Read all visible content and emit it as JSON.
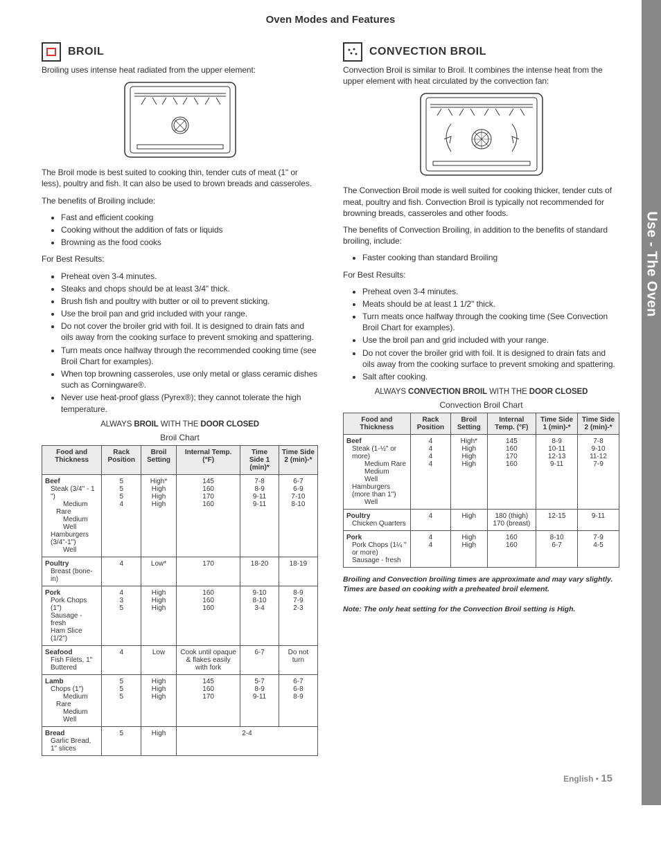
{
  "page_title": "Oven Modes and Features",
  "sidebar": "Use - The Oven",
  "footer": {
    "lang": "English",
    "page": "15"
  },
  "left": {
    "title": "BROIL",
    "intro": "Broiling uses intense heat radiated from the upper element:",
    "p1": "The Broil mode is best suited to cooking thin, tender cuts of meat (1\" or less), poultry and fish. It can also be used to brown breads and casseroles.",
    "benefits_lead": "The benefits of Broiling include:",
    "benefits": [
      "Fast and efficient cooking",
      "Cooking without the addition of fats or liquids",
      "Browning as the food cooks"
    ],
    "best_lead": "For Best Results:",
    "best": [
      "Preheat oven 3-4 minutes.",
      "Steaks and chops should be at least 3/4\" thick.",
      "Brush fish and poultry with butter or oil to prevent sticking.",
      "Use the broil pan and grid included with your range.",
      "Do not cover the broiler grid with foil.  It is designed to drain fats and oils away from the cooking surface to prevent smoking and spattering.",
      "Turn meats once halfway through the recommended cooking time (see Broil Chart for examples).",
      "When top browning casseroles, use only metal or glass ceramic dishes such as Corningware®.",
      "Never use heat-proof glass (Pyrex®); they cannot tolerate the high temperature."
    ],
    "warn_pre": "ALWAYS ",
    "warn_b1": "BROIL",
    "warn_mid": " WITH THE ",
    "warn_b2": "DOOR CLOSED",
    "chart_title": "Broil Chart",
    "headers": [
      "Food and Thickness",
      "Rack Position",
      "Broil Setting",
      "Internal Temp. (°F)",
      "Time Side 1 (min)*",
      "Time Side 2 (min)-*"
    ],
    "rows": [
      {
        "cat": "Beef",
        "subs": [
          [
            "Steak (3/4\" - 1 \")",
            "",
            "",
            "",
            "",
            ""
          ],
          [
            "  Medium Rare",
            "5",
            "High*",
            "145",
            "7-8",
            "6-7"
          ],
          [
            "  Medium",
            "5",
            "High",
            "160",
            "8-9",
            "6-9"
          ],
          [
            "  Well",
            "5",
            "High",
            "170",
            "9-11",
            "7-10"
          ],
          [
            "Hamburgers (3/4\"-1\")",
            "",
            "",
            "",
            "",
            ""
          ],
          [
            "  Well",
            "4",
            "High",
            "160",
            "9-11",
            "8-10"
          ]
        ]
      },
      {
        "cat": "Poultry",
        "subs": [
          [
            "Breast (bone-in)",
            "4",
            "Low*",
            "170",
            "18-20",
            "18-19"
          ]
        ]
      },
      {
        "cat": "Pork",
        "subs": [
          [
            "Pork Chops (1\")",
            "4",
            "High",
            "160",
            "9-10",
            "8-9"
          ],
          [
            "Sausage - fresh",
            "3",
            "High",
            "160",
            "8-10",
            "7-9"
          ],
          [
            "Ham Slice (1/2\")",
            "5",
            "High",
            "160",
            "3-4",
            "2-3"
          ]
        ]
      },
      {
        "cat": "Seafood",
        "subs": [
          [
            "Fish Filets, 1\" Buttered",
            "4",
            "Low",
            "Cook until opaque & flakes easily with fork",
            "6-7",
            "Do not turn"
          ]
        ]
      },
      {
        "cat": "Lamb",
        "subs": [
          [
            "Chops (1\")",
            "",
            "",
            "",
            "",
            ""
          ],
          [
            "  Medium Rare",
            "5",
            "High",
            "145",
            "5-7",
            "6-7"
          ],
          [
            "  Medium",
            "5",
            "High",
            "160",
            "8-9",
            "6-8"
          ],
          [
            "  Well",
            "5",
            "High",
            "170",
            "9-11",
            "8-9"
          ]
        ]
      },
      {
        "cat": "Bread",
        "subs": [
          [
            "Garlic Bread, 1\" slices",
            "5",
            "High",
            "2-4_span",
            "",
            ""
          ]
        ]
      }
    ]
  },
  "right": {
    "title": "CONVECTION BROIL",
    "intro": "Convection Broil is similar to Broil.  It combines the intense heat from the upper element with heat circulated by the convection fan:",
    "p1": "The Convection Broil mode is well suited for cooking thicker, tender cuts of meat, poultry and fish. Convection Broil is typically not recommended for browning breads, casseroles and other foods.",
    "benefits_lead": "The benefits of Convection Broiling, in addition to the benefits of standard broiling, include:",
    "benefits": [
      "Faster cooking than standard Broiling"
    ],
    "best_lead": "For Best Results:",
    "best": [
      "Preheat oven 3-4 minutes.",
      "Meats should be at least 1 1/2\" thick.",
      "Turn meats once halfway through the cooking time (See Convection Broil Chart for examples).",
      "Use the broil pan and grid included with your range.",
      "Do not cover the broiler grid with foil.  It is designed to drain fats and oils away from the cooking surface to prevent smoking and spattering.",
      "Salt after cooking."
    ],
    "warn_pre": "ALWAYS ",
    "warn_b1": "CONVECTION BROIL",
    "warn_mid": " WITH THE ",
    "warn_b2": "DOOR CLOSED",
    "chart_title": "Convection Broil Chart",
    "headers": [
      "Food and Thickness",
      "Rack Position",
      "Broil Setting",
      "Internal Temp. (°F)",
      "Time Side 1 (min)-*",
      "Time Side 2 (min)-*"
    ],
    "rows": [
      {
        "cat": "Beef",
        "subs": [
          [
            "Steak (1-½\" or more)",
            "",
            "",
            "",
            "",
            ""
          ],
          [
            "  Medium Rare",
            "4",
            "High*",
            "145",
            "8-9",
            "7-8"
          ],
          [
            "  Medium",
            "4",
            "High",
            "160",
            "10-11",
            "9-10"
          ],
          [
            "  Well",
            "4",
            "High",
            "170",
            "12-13",
            "11-12"
          ],
          [
            "Hamburgers (more than 1\")",
            "",
            "",
            "",
            "",
            ""
          ],
          [
            "  Well",
            "4",
            "High",
            "160",
            "9-11",
            "7-9"
          ]
        ]
      },
      {
        "cat": "Poultry",
        "subs": [
          [
            "Chicken Quarters",
            "4",
            "High",
            "180 (thigh) 170 (breast)",
            "12-15",
            "9-11"
          ]
        ]
      },
      {
        "cat": "Pork",
        "subs": [
          [
            "Pork Chops (1¼ \" or more)",
            "4",
            "High",
            "160",
            "8-10",
            "7-9"
          ],
          [
            "Sausage - fresh",
            "4",
            "High",
            "160",
            "6-7",
            "4-5"
          ]
        ]
      }
    ],
    "note1": "Broiling and Convection broiling times are approximate and may vary slightly. Times are based on cooking with a preheated broil element.",
    "note2": "Note: The only heat setting for the Convection Broil setting is High."
  }
}
